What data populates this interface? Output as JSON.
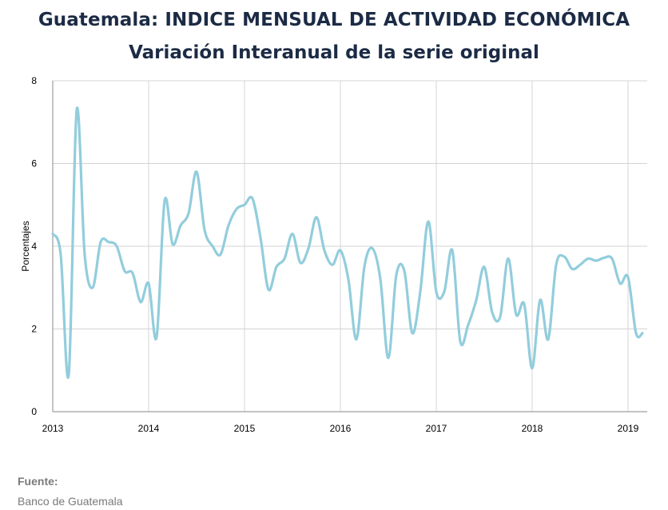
{
  "chart_data": {
    "type": "line",
    "title": "Guatemala: INDICE MENSUAL DE ACTIVIDAD ECONÓMICA",
    "subtitle": "Variación Interanual de la serie original",
    "xlabel": "",
    "ylabel": "Porcentajes",
    "xlim": [
      2013.0,
      2019.2
    ],
    "ylim": [
      0,
      8
    ],
    "yticks": [
      "0",
      "2",
      "4",
      "6",
      "8"
    ],
    "xticks": [
      "2013",
      "2014",
      "2015",
      "2016",
      "2017",
      "2018",
      "2019"
    ],
    "grid": true,
    "line_color": "#92cddc",
    "series": [
      {
        "x": [
          2013.0,
          2013.083,
          2013.167,
          2013.25,
          2013.333,
          2013.417,
          2013.5,
          2013.583,
          2013.667,
          2013.75,
          2013.833,
          2013.917,
          2014.0,
          2014.083,
          2014.167,
          2014.25,
          2014.333,
          2014.417,
          2014.5,
          2014.583,
          2014.667,
          2014.75,
          2014.833,
          2014.917,
          2015.0,
          2015.083,
          2015.167,
          2015.25,
          2015.333,
          2015.417,
          2015.5,
          2015.583,
          2015.667,
          2015.75,
          2015.833,
          2015.917,
          2016.0,
          2016.083,
          2016.167,
          2016.25,
          2016.333,
          2016.417,
          2016.5,
          2016.583,
          2016.667,
          2016.75,
          2016.833,
          2016.917,
          2017.0,
          2017.083,
          2017.167,
          2017.25,
          2017.333,
          2017.417,
          2017.5,
          2017.583,
          2017.667,
          2017.75,
          2017.833,
          2017.917,
          2018.0,
          2018.083,
          2018.167,
          2018.25,
          2018.333,
          2018.417,
          2018.5,
          2018.583,
          2018.667,
          2018.75,
          2018.833,
          2018.917,
          2019.0,
          2019.083,
          2019.15
        ],
        "values": [
          4.3,
          3.8,
          0.9,
          7.3,
          3.8,
          3.0,
          4.1,
          4.1,
          4.0,
          3.4,
          3.35,
          2.65,
          3.1,
          1.8,
          5.1,
          4.05,
          4.5,
          4.8,
          5.8,
          4.4,
          4.0,
          3.8,
          4.5,
          4.9,
          5.0,
          5.15,
          4.2,
          2.95,
          3.5,
          3.7,
          4.3,
          3.6,
          3.95,
          4.7,
          3.9,
          3.55,
          3.9,
          3.2,
          1.75,
          3.5,
          3.95,
          3.2,
          1.3,
          3.3,
          3.4,
          1.9,
          2.9,
          4.6,
          2.9,
          2.9,
          3.9,
          1.7,
          2.1,
          2.7,
          3.5,
          2.4,
          2.3,
          3.7,
          2.35,
          2.6,
          1.05,
          2.7,
          1.75,
          3.55,
          3.75,
          3.45,
          3.55,
          3.7,
          3.65,
          3.72,
          3.7,
          3.1,
          3.25,
          1.9,
          1.9
        ]
      }
    ]
  },
  "source": {
    "label": "Fuente:",
    "value": "Banco de Guatemala"
  }
}
